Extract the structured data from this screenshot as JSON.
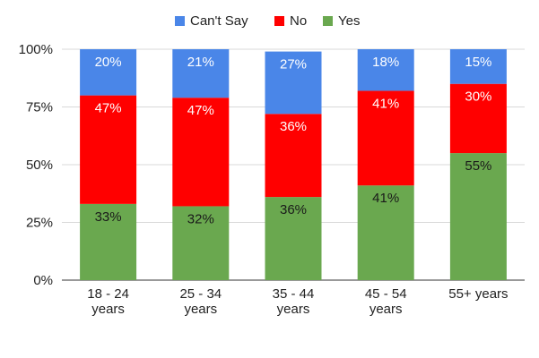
{
  "chart_data": {
    "type": "bar",
    "stacked": true,
    "percent_stacked": true,
    "title": "",
    "xlabel": "",
    "ylabel": "",
    "ylim": [
      0,
      100
    ],
    "yticks": [
      "0%",
      "25%",
      "50%",
      "75%",
      "100%"
    ],
    "ytick_values": [
      0,
      25,
      50,
      75,
      100
    ],
    "grid": true,
    "legend_position": "top",
    "categories": [
      [
        "18 - 24",
        "years"
      ],
      [
        "25 - 34",
        "years"
      ],
      [
        "35 - 44",
        "years"
      ],
      [
        "45 - 54",
        "years"
      ],
      [
        "55+ years"
      ]
    ],
    "series": [
      {
        "name": "Yes",
        "color": "#6aa84f",
        "values": [
          33,
          32,
          36,
          41,
          55
        ],
        "labels": [
          "33%",
          "32%",
          "36%",
          "41%",
          "55%"
        ]
      },
      {
        "name": "No",
        "color": "#ff0000",
        "values": [
          47,
          47,
          36,
          41,
          30
        ],
        "labels": [
          "47%",
          "47%",
          "36%",
          "41%",
          "30%"
        ]
      },
      {
        "name": "Can't Say",
        "color": "#4a86e8",
        "values": [
          20,
          21,
          27,
          18,
          15
        ],
        "labels": [
          "20%",
          "21%",
          "27%",
          "18%",
          "15%"
        ]
      }
    ],
    "legend_order": [
      "Can't Say",
      "No",
      "Yes"
    ]
  }
}
